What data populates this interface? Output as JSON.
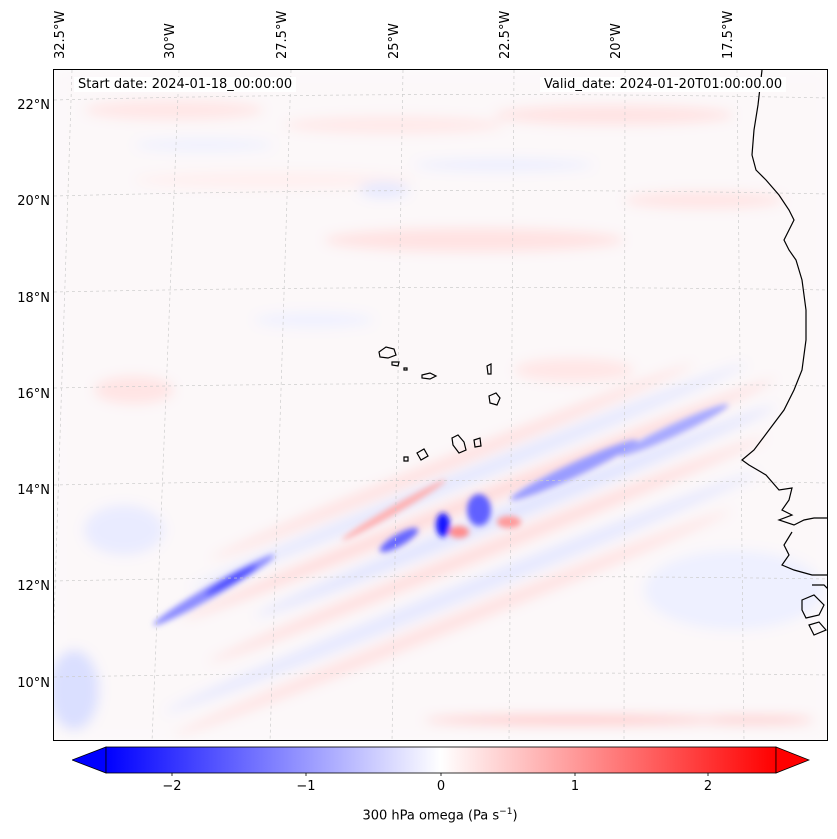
{
  "map": {
    "start_date": "Start date: 2024-01-18_00:00:00",
    "valid_date": "Valid_date: 2024-01-20T01:00:00.00",
    "lon_labels": [
      "32.5°W",
      "30°W",
      "27.5°W",
      "25°W",
      "22.5°W",
      "20°W",
      "17.5°W"
    ],
    "lat_labels": [
      "22°N",
      "20°N",
      "18°N",
      "16°N",
      "14°N",
      "12°N",
      "10°N"
    ],
    "variable": "300 hPa omega",
    "coastline_color": "#000000",
    "gridline_color": "#cccccc"
  },
  "colorbar": {
    "ticks": [
      "−2",
      "−1",
      "0",
      "1",
      "2"
    ],
    "title": "300 hPa omega (Pa s",
    "title_exp": "−1",
    "title_close": ")",
    "min": -2.75,
    "max": 2.75,
    "cmap": "bwr",
    "low_color": "#0000ff",
    "mid_color": "#ffffff",
    "high_color": "#ff0000",
    "extend": "both"
  }
}
